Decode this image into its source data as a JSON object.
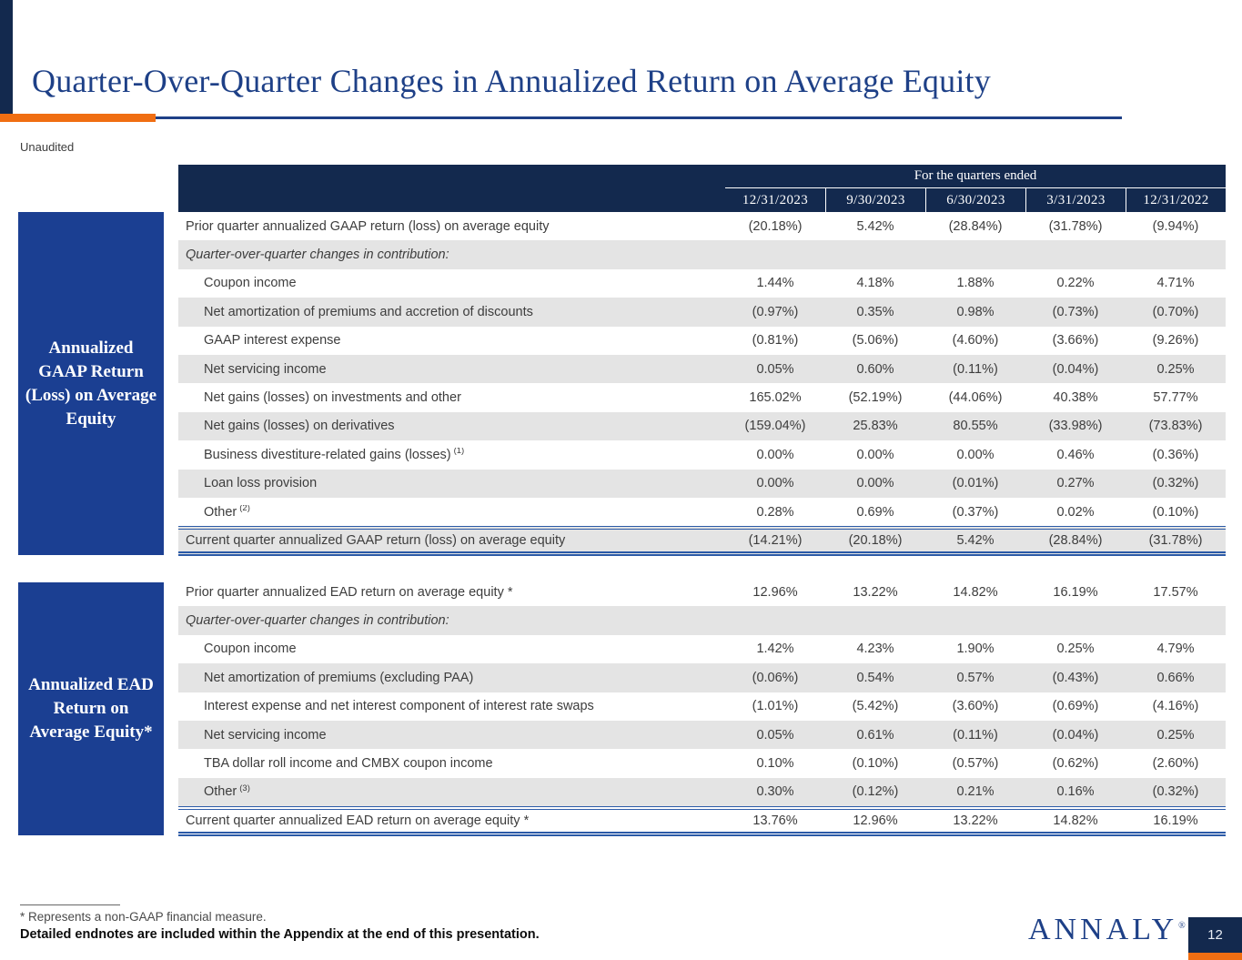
{
  "colors": {
    "navy": "#13294E",
    "blue": "#1B3F92",
    "titleNavy": "#1E4087",
    "orange": "#F06E12",
    "lineBlue": "#2B5AA7",
    "grayRow": "#E4E4E4"
  },
  "header": {
    "title": "Quarter-Over-Quarter Changes in Annualized Return on Average Equity",
    "subtitle": "Unaudited"
  },
  "table_header": {
    "title": "For the quarters ended",
    "dates": [
      "12/31/2023",
      "9/30/2023",
      "6/30/2023",
      "3/31/2023",
      "12/31/2022"
    ]
  },
  "sidebars": [
    {
      "label": "Annualized GAAP Return (Loss) on Average Equity"
    },
    {
      "label": "Annualized EAD Return on Average Equity*"
    }
  ],
  "tables": [
    {
      "name": "gaap",
      "rows": [
        {
          "type": "first",
          "label": "Prior quarter annualized GAAP return (loss) on average equity",
          "sup": "",
          "values": [
            "(20.18%)",
            "5.42%",
            "(28.84%)",
            "(31.78%)",
            "(9.94%)"
          ]
        },
        {
          "type": "section",
          "label": "Quarter-over-quarter changes in contribution:",
          "sup": "",
          "values": []
        },
        {
          "type": "indent",
          "label": "Coupon income",
          "sup": "",
          "values": [
            "1.44%",
            "4.18%",
            "1.88%",
            "0.22%",
            "4.71%"
          ]
        },
        {
          "type": "indent",
          "label": "Net amortization of premiums and accretion of discounts",
          "sup": "",
          "values": [
            "(0.97%)",
            "0.35%",
            "0.98%",
            "(0.73%)",
            "(0.70%)"
          ]
        },
        {
          "type": "indent",
          "label": "GAAP interest expense",
          "sup": "",
          "values": [
            "(0.81%)",
            "(5.06%)",
            "(4.60%)",
            "(3.66%)",
            "(9.26%)"
          ]
        },
        {
          "type": "indent",
          "label": "Net servicing income",
          "sup": "",
          "values": [
            "0.05%",
            "0.60%",
            "(0.11%)",
            "(0.04%)",
            "0.25%"
          ]
        },
        {
          "type": "indent",
          "label": "Net gains (losses) on investments and other",
          "sup": "",
          "values": [
            "165.02%",
            "(52.19%)",
            "(44.06%)",
            "40.38%",
            "57.77%"
          ]
        },
        {
          "type": "indent",
          "label": "Net gains (losses) on derivatives",
          "sup": "",
          "values": [
            "(159.04%)",
            "25.83%",
            "80.55%",
            "(33.98%)",
            "(73.83%)"
          ]
        },
        {
          "type": "indent",
          "label": "Business divestiture-related gains (losses)",
          "sup": "(1)",
          "values": [
            "0.00%",
            "0.00%",
            "0.00%",
            "0.46%",
            "(0.36%)"
          ]
        },
        {
          "type": "indent",
          "label": "Loan loss provision",
          "sup": "",
          "values": [
            "0.00%",
            "0.00%",
            "(0.01%)",
            "0.27%",
            "(0.32%)"
          ]
        },
        {
          "type": "indent",
          "label": "Other",
          "sup": "(2)",
          "values": [
            "0.28%",
            "0.69%",
            "(0.37%)",
            "0.02%",
            "(0.10%)"
          ]
        },
        {
          "type": "total",
          "label": "Current quarter annualized GAAP return (loss) on average equity",
          "sup": "",
          "values": [
            "(14.21%)",
            "(20.18%)",
            "5.42%",
            "(28.84%)",
            "(31.78%)"
          ]
        }
      ]
    },
    {
      "name": "ead",
      "rows": [
        {
          "type": "first",
          "label": "Prior quarter annualized EAD return on average equity *",
          "sup": "",
          "values": [
            "12.96%",
            "13.22%",
            "14.82%",
            "16.19%",
            "17.57%"
          ]
        },
        {
          "type": "section",
          "label": "Quarter-over-quarter changes in contribution:",
          "sup": "",
          "values": []
        },
        {
          "type": "indent",
          "label": "Coupon income",
          "sup": "",
          "values": [
            "1.42%",
            "4.23%",
            "1.90%",
            "0.25%",
            "4.79%"
          ]
        },
        {
          "type": "indent",
          "label": "Net amortization of premiums (excluding PAA)",
          "sup": "",
          "values": [
            "(0.06%)",
            "0.54%",
            "0.57%",
            "(0.43%)",
            "0.66%"
          ]
        },
        {
          "type": "indent",
          "label": "Interest expense and net interest component of interest rate swaps",
          "sup": "",
          "values": [
            "(1.01%)",
            "(5.42%)",
            "(3.60%)",
            "(0.69%)",
            "(4.16%)"
          ]
        },
        {
          "type": "indent",
          "label": "Net servicing income",
          "sup": "",
          "values": [
            "0.05%",
            "0.61%",
            "(0.11%)",
            "(0.04%)",
            "0.25%"
          ]
        },
        {
          "type": "indent",
          "label": "TBA dollar roll income and CMBX coupon income",
          "sup": "",
          "values": [
            "0.10%",
            "(0.10%)",
            "(0.57%)",
            "(0.62%)",
            "(2.60%)"
          ]
        },
        {
          "type": "indent",
          "label": "Other",
          "sup": "(3)",
          "values": [
            "0.30%",
            "(0.12%)",
            "0.21%",
            "0.16%",
            "(0.32%)"
          ]
        },
        {
          "type": "total",
          "label": "Current quarter annualized EAD return on average equity *",
          "sup": "",
          "values": [
            "13.76%",
            "12.96%",
            "13.22%",
            "14.82%",
            "16.19%"
          ]
        }
      ]
    }
  ],
  "footer": {
    "note1": "*  Represents a non-GAAP financial measure.",
    "note2": "Detailed endnotes are included within the Appendix at the end of this presentation.",
    "logo": "ANNALY",
    "logo_reg": "®",
    "page_number": "12"
  }
}
